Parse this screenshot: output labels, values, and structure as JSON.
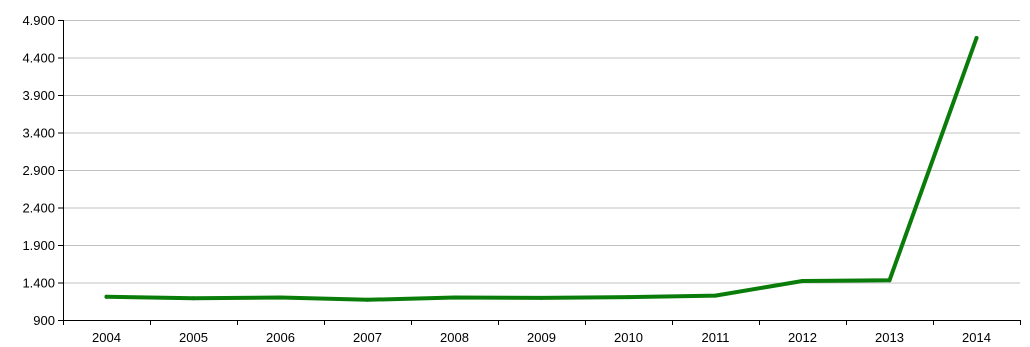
{
  "chart_data": {
    "type": "line",
    "title": "",
    "xlabel": "",
    "ylabel": "",
    "categories": [
      "2004",
      "2005",
      "2006",
      "2007",
      "2008",
      "2009",
      "2010",
      "2011",
      "2012",
      "2013",
      "2014"
    ],
    "series": [
      {
        "values": [
          1210,
          1190,
          1200,
          1170,
          1200,
          1195,
          1205,
          1225,
          1420,
          1430,
          4660
        ],
        "color": "#0a7c0a"
      }
    ],
    "ylim": [
      900,
      4900
    ],
    "yticks": [
      900,
      1400,
      1900,
      2400,
      2900,
      3400,
      3900,
      4400,
      4900
    ],
    "ytick_labels": [
      "900",
      "1.400",
      "1.900",
      "2.400",
      "2.900",
      "3.400",
      "3.900",
      "4.400",
      "4.900"
    ],
    "grid": true,
    "legend": "none"
  }
}
